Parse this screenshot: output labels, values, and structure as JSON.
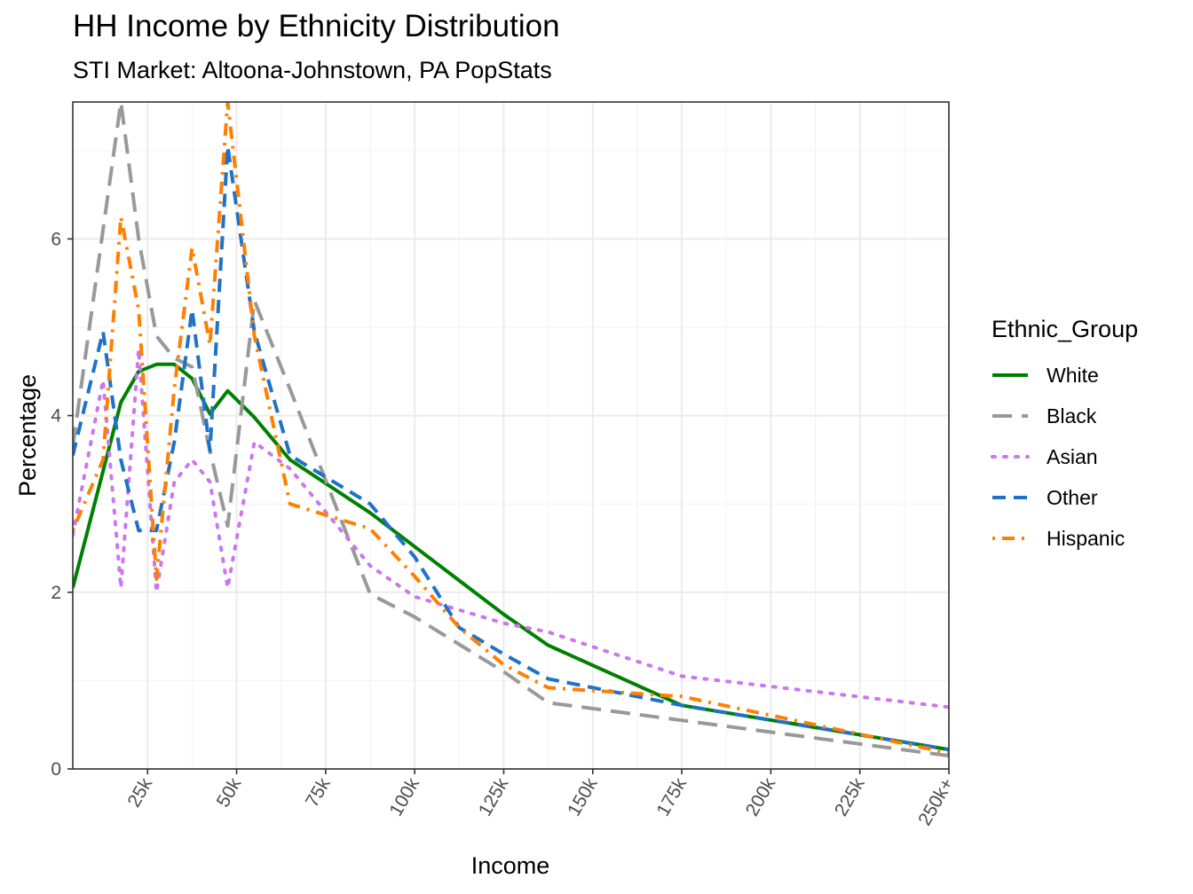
{
  "title": "HH Income by Ethnicity Distribution",
  "subtitle": "STI Market: Altoona-Johnstown, PA PopStats",
  "chart_data": {
    "type": "line",
    "xlabel": "Income",
    "ylabel": "Percentage",
    "xlim": [
      4,
      250
    ],
    "ylim": [
      0,
      7.55
    ],
    "x_ticks": [
      {
        "value": 25,
        "label": "25k"
      },
      {
        "value": 50,
        "label": "50k"
      },
      {
        "value": 75,
        "label": "75k"
      },
      {
        "value": 100,
        "label": "100k"
      },
      {
        "value": 125,
        "label": "125k"
      },
      {
        "value": 150,
        "label": "150k"
      },
      {
        "value": 175,
        "label": "175k"
      },
      {
        "value": 200,
        "label": "200k"
      },
      {
        "value": 225,
        "label": "225k"
      },
      {
        "value": 250,
        "label": "250k+"
      }
    ],
    "y_ticks": [
      0,
      2,
      4,
      6
    ],
    "grid": true,
    "legend_title": "Ethnic_Group",
    "legend_position": "right",
    "series": [
      {
        "name": "White",
        "color": "#008000",
        "dash": "solid",
        "x": [
          4,
          17.5,
          22.5,
          27.5,
          32.5,
          37.5,
          42.5,
          47.5,
          55,
          65,
          87.5,
          125,
          137.5,
          175,
          250
        ],
        "y": [
          2.05,
          4.15,
          4.5,
          4.58,
          4.58,
          4.42,
          4.02,
          4.28,
          3.98,
          3.5,
          2.9,
          1.75,
          1.4,
          0.72,
          0.22
        ]
      },
      {
        "name": "Black",
        "color": "#999999",
        "dash": "longdash",
        "x": [
          4,
          17.5,
          22.5,
          27.5,
          32.5,
          37.5,
          42.5,
          47.5,
          55,
          65,
          87.5,
          100,
          125,
          137.5,
          175,
          250
        ],
        "y": [
          3.65,
          7.55,
          6.0,
          4.9,
          4.65,
          4.55,
          3.6,
          2.75,
          5.3,
          4.3,
          1.98,
          1.72,
          1.1,
          0.75,
          0.55,
          0.15
        ]
      },
      {
        "name": "Asian",
        "color": "#cc77ee",
        "dash": "dotted",
        "x": [
          4,
          12.5,
          17.5,
          22.5,
          27.5,
          32.5,
          37.5,
          42.5,
          47.5,
          55,
          65,
          87.5,
          100,
          125,
          137.5,
          175,
          250
        ],
        "y": [
          2.65,
          4.4,
          2.05,
          4.75,
          2.0,
          3.25,
          3.5,
          3.25,
          2.05,
          3.7,
          3.4,
          2.3,
          1.95,
          1.65,
          1.55,
          1.05,
          0.7
        ]
      },
      {
        "name": "Other",
        "color": "#1f72c8",
        "dash": "dashed",
        "x": [
          4,
          12.5,
          17.5,
          22.5,
          27.5,
          32.5,
          37.5,
          42.5,
          47.5,
          55,
          65,
          87.5,
          100,
          112.5,
          125,
          137.5,
          175,
          250
        ],
        "y": [
          3.55,
          4.95,
          3.5,
          2.7,
          2.7,
          3.7,
          5.2,
          3.6,
          7.05,
          4.95,
          3.55,
          3.0,
          2.4,
          1.6,
          1.3,
          1.02,
          0.72,
          0.22
        ]
      },
      {
        "name": "Hispanic",
        "color": "#ff8000",
        "dash": "dotdash",
        "x": [
          4,
          12.5,
          17.5,
          22.5,
          27.5,
          32.5,
          37.5,
          42.5,
          47.5,
          55,
          65,
          87.5,
          100,
          112.5,
          125,
          137.5,
          175,
          250
        ],
        "y": [
          2.7,
          3.5,
          6.25,
          5.2,
          2.15,
          4.3,
          5.9,
          4.8,
          7.55,
          4.9,
          3.0,
          2.72,
          2.18,
          1.6,
          1.18,
          0.92,
          0.82,
          0.18
        ]
      }
    ]
  }
}
